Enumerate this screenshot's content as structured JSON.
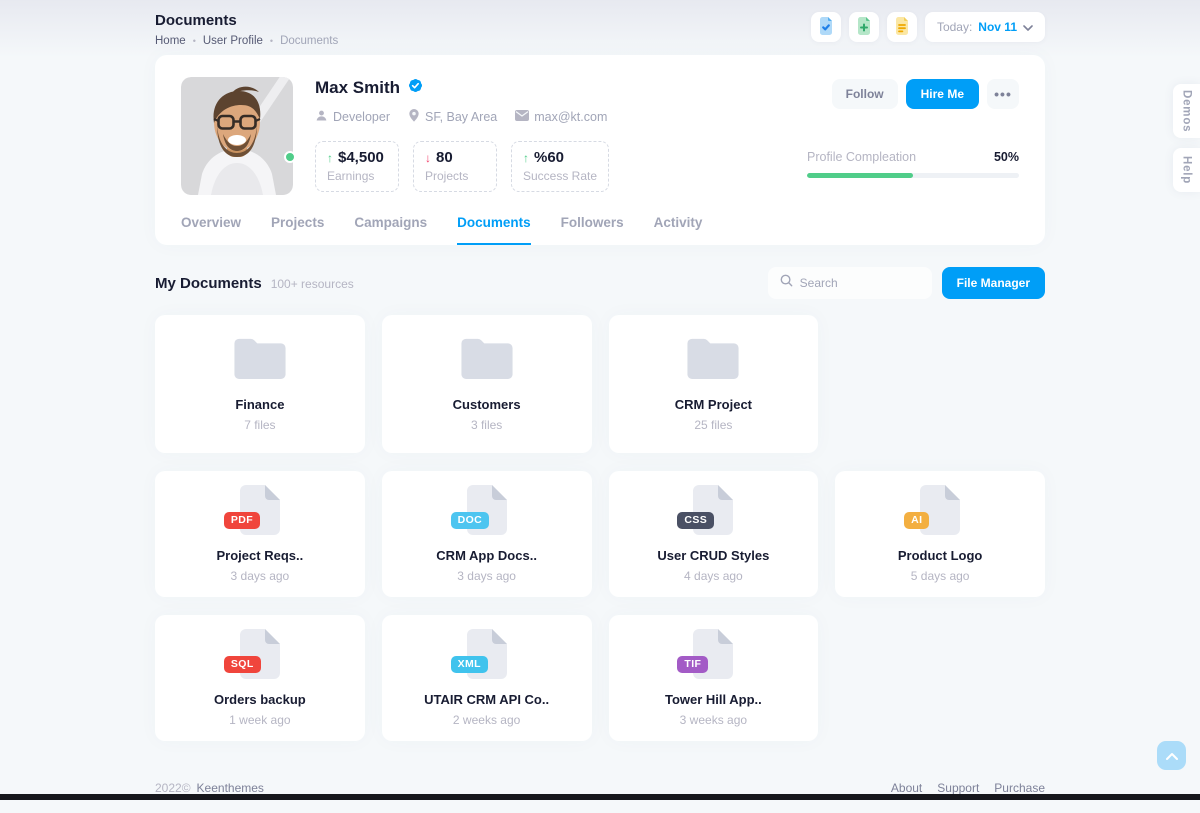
{
  "page": {
    "title": "Documents",
    "breadcrumb_separator": "•",
    "breadcrumbs": [
      "Home",
      "User Profile",
      "Documents"
    ]
  },
  "toolbar": {
    "buttons": [
      {
        "icon": "file-check-icon"
      },
      {
        "icon": "file-add-icon"
      },
      {
        "icon": "file-notes-icon"
      }
    ],
    "date_prefix": "Today:",
    "date_value": "Nov 11"
  },
  "profile": {
    "name": "Max Smith",
    "meta": [
      {
        "icon": "user-icon",
        "label": "Developer"
      },
      {
        "icon": "location-pin-icon",
        "label": "SF, Bay Area"
      },
      {
        "icon": "envelope-icon",
        "label": "max@kt.com"
      }
    ],
    "actions": {
      "follow": "Follow",
      "hire": "Hire Me",
      "more": "•••"
    },
    "stats": [
      {
        "trend": "up",
        "value": "$4,500",
        "label": "Earnings"
      },
      {
        "trend": "down",
        "value": "80",
        "label": "Projects"
      },
      {
        "trend": "up",
        "value": "%60",
        "label": "Success Rate"
      }
    ],
    "completion": {
      "label": "Profile Compleation",
      "value": "50%",
      "percent": 50
    },
    "tabs": [
      {
        "label": "Overview"
      },
      {
        "label": "Projects"
      },
      {
        "label": "Campaigns"
      },
      {
        "label": "Documents"
      },
      {
        "label": "Followers"
      },
      {
        "label": "Activity"
      }
    ],
    "active_tab": "Documents"
  },
  "documents": {
    "heading": "My Documents",
    "count": "100+ resources",
    "search_placeholder": "Search",
    "file_manager_label": "File Manager",
    "folders": [
      {
        "name": "Finance",
        "info": "7 files"
      },
      {
        "name": "Customers",
        "info": "3 files"
      },
      {
        "name": "CRM Project",
        "info": "25 files"
      }
    ],
    "files": [
      {
        "badge": "PDF",
        "badge_color": "#F0453C",
        "name": "Project Reqs..",
        "info": "3 days ago"
      },
      {
        "badge": "DOC",
        "badge_color": "#4DC5F0",
        "name": "CRM App Docs..",
        "info": "3 days ago"
      },
      {
        "badge": "CSS",
        "badge_color": "#4A5064",
        "name": "User CRUD Styles",
        "info": "4 days ago"
      },
      {
        "badge": "AI",
        "badge_color": "#F3AF41",
        "name": "Product Logo",
        "info": "5 days ago"
      },
      {
        "badge": "SQL",
        "badge_color": "#F0453C",
        "name": "Orders backup",
        "info": "1 week ago"
      },
      {
        "badge": "XML",
        "badge_color": "#40C3ED",
        "name": "UTAIR CRM API Co..",
        "info": "2 weeks ago"
      },
      {
        "badge": "TIF",
        "badge_color": "#A35BC6",
        "name": "Tower Hill App..",
        "info": "3 weeks ago"
      }
    ]
  },
  "footer": {
    "year": "2022©",
    "brand": "Keenthemes",
    "links": [
      "About",
      "Support",
      "Purchase"
    ]
  },
  "edge_tabs": {
    "demos": "Demos",
    "help": "Help"
  },
  "colors": {
    "primary": "#009EF7",
    "success": "#50CD89",
    "danger": "#F1416C"
  }
}
